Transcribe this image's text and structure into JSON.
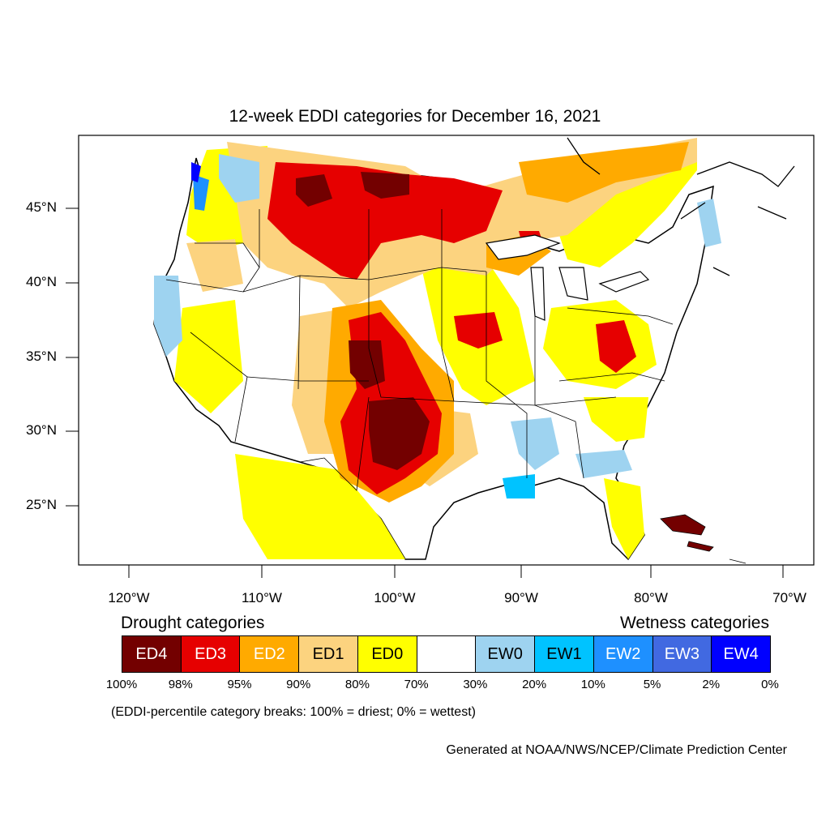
{
  "title": "12-week EDDI categories for December 16, 2021",
  "lat_labels": [
    "45°N",
    "40°N",
    "35°N",
    "30°N",
    "25°N"
  ],
  "lon_labels": [
    "120°W",
    "110°W",
    "100°W",
    "90°W",
    "80°W",
    "70°W"
  ],
  "legend": {
    "drought_heading": "Drought categories",
    "wetness_heading": "Wetness categories",
    "categories": [
      {
        "label": "ED4",
        "color": "#730000"
      },
      {
        "label": "ED3",
        "color": "#e60000"
      },
      {
        "label": "ED2",
        "color": "#ffaa00"
      },
      {
        "label": "ED1",
        "color": "#fcd37f"
      },
      {
        "label": "ED0",
        "color": "#ffff00"
      },
      {
        "label": "",
        "color": "#ffffff"
      },
      {
        "label": "EW0",
        "color": "#9ed3f0"
      },
      {
        "label": "EW1",
        "color": "#00c3ff"
      },
      {
        "label": "EW2",
        "color": "#1e90ff"
      },
      {
        "label": "EW3",
        "color": "#4169e1"
      },
      {
        "label": "EW4",
        "color": "#0000ff"
      }
    ],
    "breaks": [
      "100%",
      "98%",
      "95%",
      "90%",
      "80%",
      "70%",
      "30%",
      "20%",
      "10%",
      "5%",
      "2%",
      "0%"
    ]
  },
  "note": "(EDDI-percentile category breaks: 100% = driest; 0% = wettest)",
  "credit": "Generated at NOAA/NWS/NCEP/Climate Prediction Center"
}
